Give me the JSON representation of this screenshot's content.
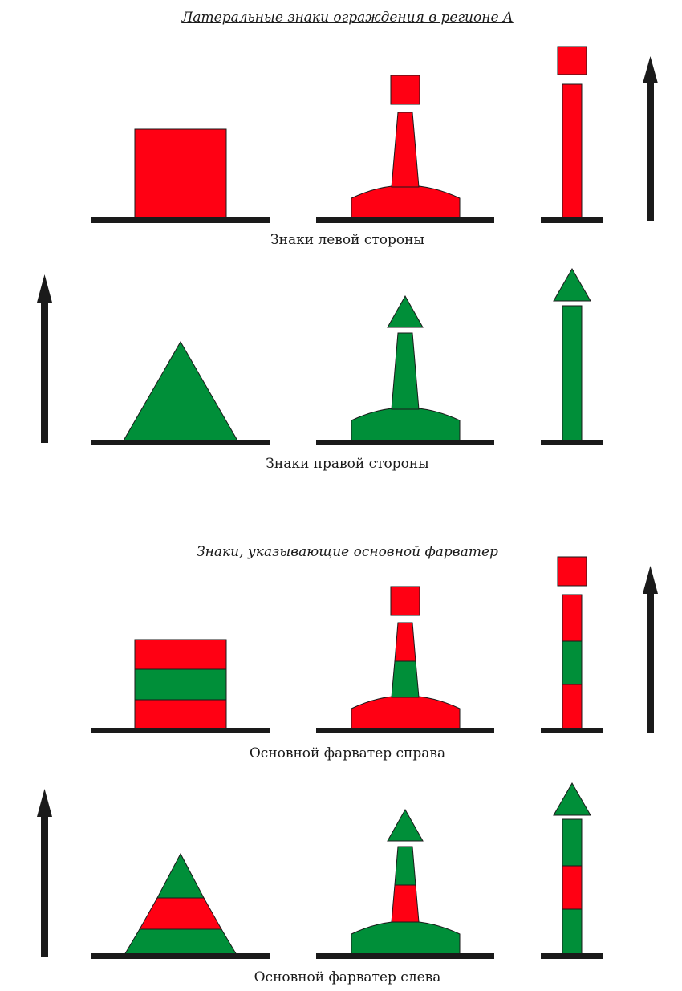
{
  "title": "Латеральные знаки ограждения в регионе А",
  "subtitle": "Знаки, указывающие основной фарватер",
  "rows": [
    {
      "caption": "Знаки левой стороны"
    },
    {
      "caption": "Знаки правой стороны"
    },
    {
      "caption": "Основной фарватер справа"
    },
    {
      "caption": "Основной фарватер слева"
    }
  ],
  "colors": {
    "red": "#ff0013",
    "green": "#008f39",
    "ground": "#1a1a1a",
    "outline": "#1a1a1a"
  }
}
